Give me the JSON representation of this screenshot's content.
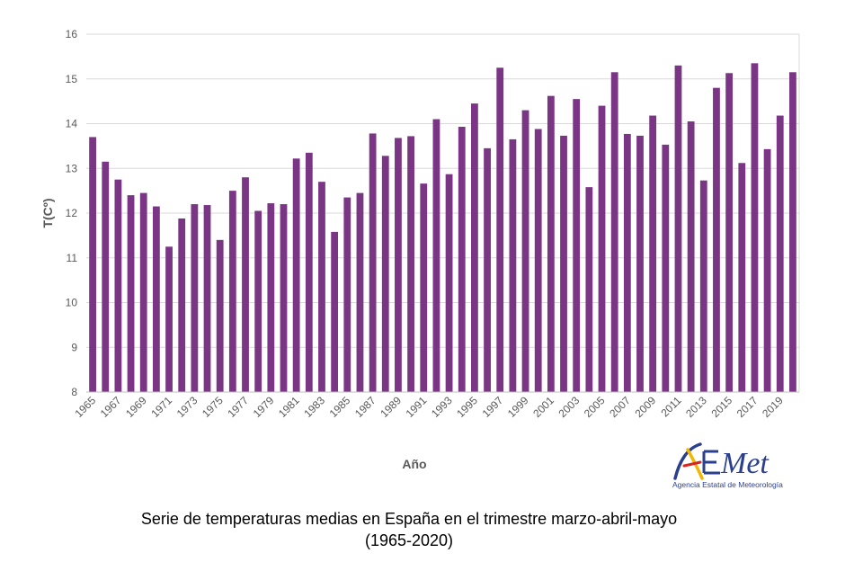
{
  "chart_data": {
    "type": "bar",
    "ylabel": "T(Cº)",
    "xlabel": "Año",
    "ylim": [
      8,
      16
    ],
    "yticks": [
      8,
      9,
      10,
      11,
      12,
      13,
      14,
      15,
      16
    ],
    "grid": true,
    "bar_color": "#7b3585",
    "x_tick_labels": [
      "1965",
      "1967",
      "1969",
      "1971",
      "1973",
      "1975",
      "1977",
      "1979",
      "1981",
      "1983",
      "1985",
      "1987",
      "1989",
      "1991",
      "1993",
      "1995",
      "1997",
      "1999",
      "2001",
      "2003",
      "2005",
      "2007",
      "2009",
      "2011",
      "2013",
      "2015",
      "2017",
      "2019"
    ],
    "categories": [
      1965,
      1966,
      1967,
      1968,
      1969,
      1970,
      1971,
      1972,
      1973,
      1974,
      1975,
      1976,
      1977,
      1978,
      1979,
      1980,
      1981,
      1982,
      1983,
      1984,
      1985,
      1986,
      1987,
      1988,
      1989,
      1990,
      1991,
      1992,
      1993,
      1994,
      1995,
      1996,
      1997,
      1998,
      1999,
      2000,
      2001,
      2002,
      2003,
      2004,
      2005,
      2006,
      2007,
      2008,
      2009,
      2010,
      2011,
      2012,
      2013,
      2014,
      2015,
      2016,
      2017,
      2018,
      2019,
      2020
    ],
    "values": [
      13.7,
      13.15,
      12.75,
      12.4,
      12.45,
      12.15,
      11.25,
      11.88,
      12.2,
      12.18,
      11.4,
      12.5,
      12.8,
      12.05,
      12.22,
      12.2,
      13.22,
      13.35,
      12.7,
      11.58,
      12.35,
      12.45,
      13.78,
      13.28,
      13.68,
      13.72,
      12.66,
      14.1,
      12.87,
      13.93,
      14.45,
      13.45,
      15.25,
      13.65,
      14.3,
      13.88,
      14.62,
      13.73,
      14.55,
      12.58,
      14.4,
      15.15,
      13.77,
      13.73,
      14.18,
      13.53,
      15.3,
      14.05,
      12.73,
      14.8,
      15.13,
      13.12,
      15.35,
      13.43,
      14.18,
      15.15
    ]
  },
  "logo": {
    "name": "AEMet",
    "subtitle": "Agencia Estatal de Meteorología"
  },
  "caption": {
    "line1": "Serie de temperaturas medias en España en el trimestre marzo-abril-mayo",
    "line2": "(1965-2020)"
  }
}
